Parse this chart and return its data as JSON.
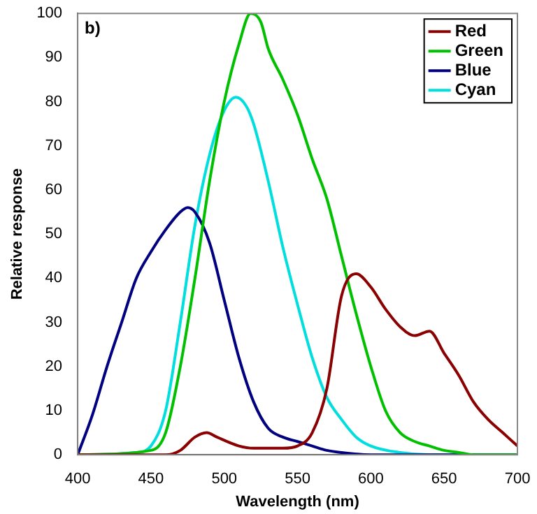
{
  "chart_data": {
    "type": "line",
    "title": "b)",
    "xlabel": "Wavelength (nm)",
    "ylabel": "Relative response",
    "xlim": [
      400,
      700
    ],
    "xticks": [
      400,
      450,
      500,
      550,
      600,
      650,
      700
    ],
    "ylim": [
      0,
      100
    ],
    "yticks": [
      0,
      10,
      20,
      30,
      40,
      50,
      60,
      70,
      80,
      90,
      100
    ],
    "grid": false,
    "legend": "top right",
    "marker": "none",
    "line_style": "solid",
    "series": [
      {
        "name": "Red",
        "color": "#8b0000",
        "x": [
          400,
          460,
          470,
          480,
          488,
          495,
          510,
          520,
          540,
          550,
          560,
          570,
          580,
          590,
          600,
          610,
          620,
          630,
          640,
          650,
          660,
          670,
          680,
          690,
          700
        ],
        "values": [
          0,
          0,
          1,
          4,
          5,
          4,
          2,
          1.5,
          1.5,
          2,
          5,
          15,
          36,
          41,
          38,
          33,
          29,
          27,
          28,
          23,
          18,
          12,
          8,
          5,
          2
        ]
      },
      {
        "name": "Green",
        "color": "#00c000",
        "x": [
          400,
          450,
          460,
          470,
          480,
          490,
          500,
          510,
          518,
          525,
          530,
          540,
          550,
          560,
          570,
          580,
          590,
          600,
          610,
          620,
          630,
          640,
          650,
          660,
          670,
          700
        ],
        "values": [
          0,
          1,
          5,
          20,
          40,
          62,
          80,
          93,
          100,
          98,
          92,
          85,
          77,
          67,
          58,
          45,
          32,
          20,
          10,
          5,
          3,
          2,
          1,
          0.5,
          0,
          0
        ]
      },
      {
        "name": "Blue",
        "color": "#000080",
        "x": [
          400,
          410,
          420,
          430,
          440,
          450,
          460,
          470,
          475,
          480,
          490,
          500,
          510,
          520,
          530,
          540,
          550,
          560,
          570,
          580,
          600,
          700
        ],
        "values": [
          0,
          9,
          20,
          30,
          40,
          46,
          51,
          55,
          56,
          55,
          48,
          35,
          22,
          12,
          6,
          4,
          3,
          2,
          1,
          0.5,
          0,
          0
        ]
      },
      {
        "name": "Cyan",
        "color": "#00dede",
        "x": [
          400,
          440,
          450,
          460,
          470,
          480,
          490,
          500,
          508,
          515,
          520,
          530,
          540,
          550,
          560,
          570,
          580,
          590,
          600,
          620,
          640,
          700
        ],
        "values": [
          0,
          0.5,
          2,
          10,
          30,
          52,
          68,
          78,
          81,
          79,
          75,
          62,
          47,
          34,
          22,
          13,
          8,
          4,
          2,
          0.5,
          0,
          0
        ]
      }
    ]
  }
}
